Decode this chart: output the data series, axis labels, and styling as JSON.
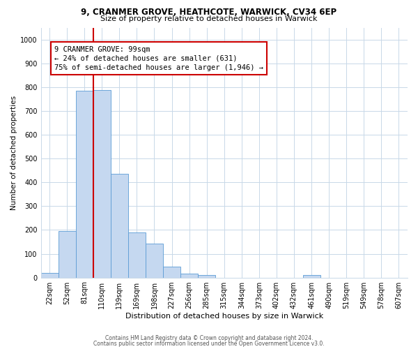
{
  "title_line1": "9, CRANMER GROVE, HEATHCOTE, WARWICK, CV34 6EP",
  "title_line2": "Size of property relative to detached houses in Warwick",
  "xlabel": "Distribution of detached houses by size in Warwick",
  "ylabel": "Number of detached properties",
  "bar_labels": [
    "22sqm",
    "52sqm",
    "81sqm",
    "110sqm",
    "139sqm",
    "169sqm",
    "198sqm",
    "227sqm",
    "256sqm",
    "285sqm",
    "315sqm",
    "344sqm",
    "373sqm",
    "402sqm",
    "432sqm",
    "461sqm",
    "490sqm",
    "519sqm",
    "549sqm",
    "578sqm",
    "607sqm"
  ],
  "bar_values": [
    18,
    195,
    785,
    790,
    435,
    190,
    143,
    47,
    15,
    10,
    0,
    0,
    0,
    0,
    0,
    10,
    0,
    0,
    0,
    0,
    0
  ],
  "bar_color": "#c5d8f0",
  "bar_edge_color": "#5b9bd5",
  "vline_x_idx": 3,
  "vline_color": "#cc0000",
  "annotation_line1": "9 CRANMER GROVE: 99sqm",
  "annotation_line2": "← 24% of detached houses are smaller (631)",
  "annotation_line3": "75% of semi-detached houses are larger (1,946) →",
  "annotation_box_color": "#ffffff",
  "annotation_box_edge": "#cc0000",
  "ylim": [
    0,
    1050
  ],
  "yticks": [
    0,
    100,
    200,
    300,
    400,
    500,
    600,
    700,
    800,
    900,
    1000
  ],
  "footnote1": "Contains HM Land Registry data © Crown copyright and database right 2024.",
  "footnote2": "Contains public sector information licensed under the Open Government Licence v3.0.",
  "background_color": "#ffffff",
  "grid_color": "#c8d8e8",
  "title1_fontsize": 8.5,
  "title2_fontsize": 8.0,
  "xlabel_fontsize": 8.0,
  "ylabel_fontsize": 7.5,
  "tick_fontsize": 7.0,
  "annot_fontsize": 7.5,
  "footnote_fontsize": 5.5
}
